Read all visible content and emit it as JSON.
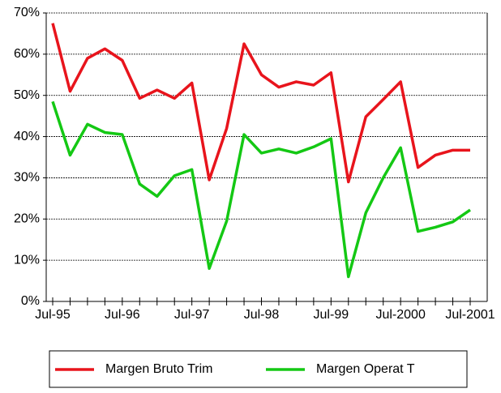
{
  "chart_data": {
    "type": "line",
    "categories": [
      "Jul-95",
      null,
      null,
      null,
      "Jul-96",
      null,
      null,
      null,
      "Jul-97",
      null,
      null,
      null,
      "Jul-98",
      null,
      null,
      null,
      "Jul-99",
      null,
      null,
      null,
      "Jul-2000",
      null,
      null,
      null,
      "Jul-2001"
    ],
    "series": [
      {
        "name": "Margen Bruto Trim",
        "color": "#e8141c",
        "values": [
          67.5,
          51,
          59,
          61.3,
          58.5,
          49.3,
          51.3,
          49.3,
          53,
          29.5,
          42,
          62.5,
          55,
          52,
          53.3,
          52.5,
          55.5,
          29,
          44.8,
          49,
          53.3,
          32.5,
          35.5,
          36.7,
          36.7
        ]
      },
      {
        "name": "Margen Operat T",
        "color": "#14c814",
        "values": [
          48.5,
          35.5,
          43,
          41,
          40.5,
          28.5,
          25.5,
          30.5,
          32,
          8,
          19.5,
          40.5,
          36,
          37,
          36,
          37.5,
          39.5,
          6,
          21.5,
          30,
          37.3,
          17,
          18,
          19.3,
          22.2
        ]
      }
    ],
    "ylim": [
      0,
      70
    ],
    "yticks": [
      {
        "value": 0,
        "label": "0%"
      },
      {
        "value": 10,
        "label": "10%"
      },
      {
        "value": 20,
        "label": "20%"
      },
      {
        "value": 30,
        "label": "30%"
      },
      {
        "value": 40,
        "label": "40%"
      },
      {
        "value": 50,
        "label": "50%"
      },
      {
        "value": 60,
        "label": "60%"
      },
      {
        "value": 70,
        "label": "70%"
      }
    ],
    "grid": true,
    "legend": "bottom"
  }
}
